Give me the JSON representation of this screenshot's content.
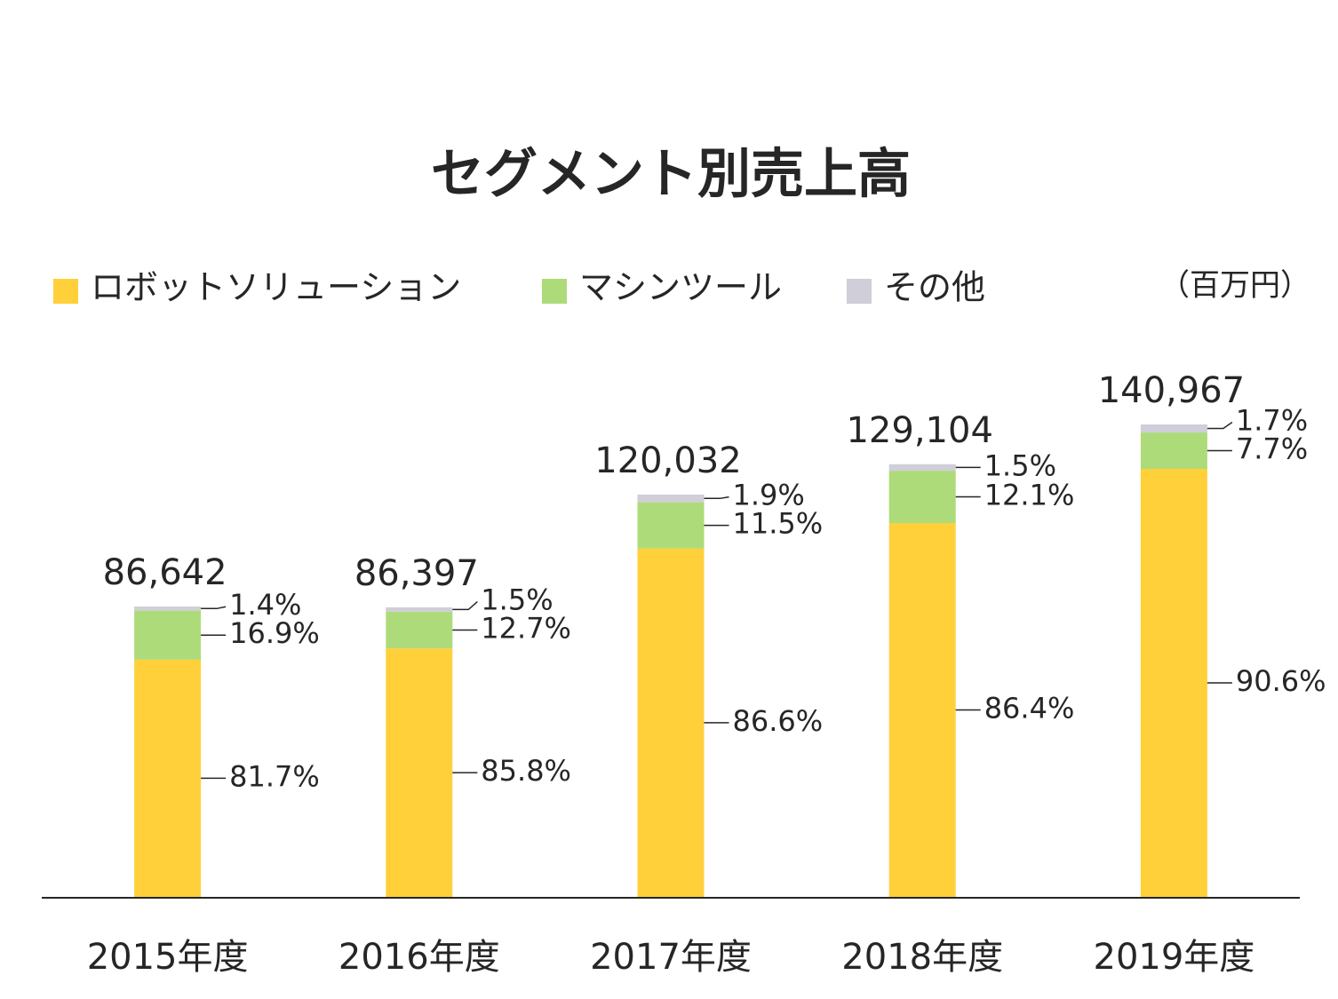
{
  "chart_data": {
    "type": "stacked-bar",
    "title": "セグメント別売上高",
    "unit": "（百万円）",
    "categories": [
      "2015年度",
      "2016年度",
      "2017年度",
      "2018年度",
      "2019年度"
    ],
    "series": [
      {
        "name": "ロボットソリューション",
        "color": "#FFD03A",
        "values": [
          81.7,
          85.8,
          86.6,
          86.4,
          90.6
        ],
        "value_labels": [
          "81.7%",
          "85.8%",
          "86.6%",
          "86.4%",
          "90.6%"
        ]
      },
      {
        "name": "マシンツール",
        "color": "#AEDB7A",
        "values": [
          16.9,
          12.7,
          11.5,
          12.1,
          7.7
        ],
        "value_labels": [
          "16.9%",
          "12.7%",
          "11.5%",
          "12.1%",
          "7.7%"
        ]
      },
      {
        "name": "その他",
        "color": "#CFCED9",
        "values": [
          1.4,
          1.5,
          1.9,
          1.5,
          1.7
        ],
        "value_labels": [
          "1.4%",
          "1.5%",
          "1.9%",
          "1.5%",
          "1.7%"
        ]
      }
    ],
    "totals": {
      "values": [
        86642,
        86397,
        120032,
        129104,
        140967
      ],
      "value_labels": [
        "86,642",
        "86,397",
        "120,032",
        "129,104",
        "140,967"
      ]
    }
  }
}
